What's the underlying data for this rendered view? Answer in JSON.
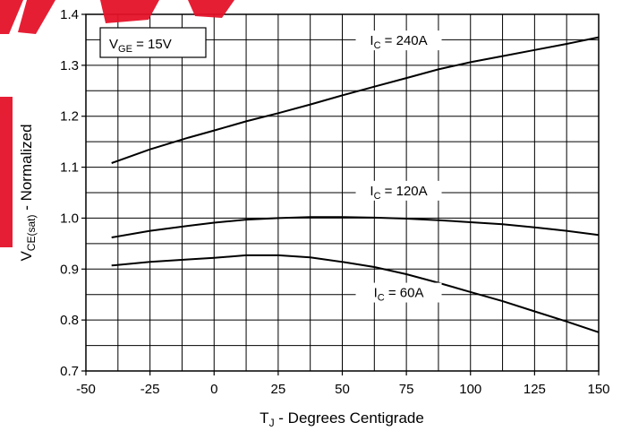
{
  "chart_data": {
    "type": "line",
    "title": "",
    "xlabel_main": "T",
    "xlabel_sub": "J",
    "xlabel_rest": " - Degrees Centigrade",
    "ylabel_main": "V",
    "ylabel_sub": "CE(sat)",
    "ylabel_rest": " - Normalized",
    "xlim": [
      -50,
      150
    ],
    "ylim": [
      0.7,
      1.4
    ],
    "x_ticks": [
      -50,
      -25,
      0,
      25,
      50,
      75,
      100,
      125,
      150
    ],
    "x_tick_labels": [
      "-50",
      "-25",
      "0",
      "25",
      "50",
      "75",
      "100",
      "125",
      "150"
    ],
    "y_ticks": [
      0.7,
      0.8,
      0.9,
      1.0,
      1.1,
      1.2,
      1.3,
      1.4
    ],
    "y_tick_labels": [
      "0.7",
      "0.8",
      "0.9",
      "1.0",
      "1.1",
      "1.2",
      "1.3",
      "1.4"
    ],
    "grid": true,
    "condition_box": {
      "main": "V",
      "sub": "GE",
      "rest": " = 15V"
    },
    "series": [
      {
        "name": "I_C = 240A",
        "label_main": "I",
        "label_sub": "C",
        "label_rest": " = 240A",
        "x": [
          -40,
          -25,
          -10,
          0,
          12.5,
          25,
          37.5,
          50,
          62.5,
          75,
          87.5,
          100,
          112.5,
          125,
          137.5,
          150
        ],
        "y": [
          1.108,
          1.135,
          1.158,
          1.172,
          1.19,
          1.206,
          1.223,
          1.241,
          1.258,
          1.275,
          1.292,
          1.306,
          1.318,
          1.33,
          1.342,
          1.355
        ]
      },
      {
        "name": "I_C = 120A",
        "label_main": "I",
        "label_sub": "C",
        "label_rest": " = 120A",
        "x": [
          -40,
          -25,
          -10,
          0,
          12.5,
          25,
          37.5,
          50,
          62.5,
          75,
          87.5,
          100,
          112.5,
          125,
          137.5,
          150
        ],
        "y": [
          0.962,
          0.975,
          0.985,
          0.991,
          0.997,
          1.0,
          1.002,
          1.002,
          1.001,
          0.999,
          0.996,
          0.992,
          0.988,
          0.982,
          0.975,
          0.967
        ]
      },
      {
        "name": "I_C = 60A",
        "label_main": "I",
        "label_sub": "C",
        "label_rest": " = 60A",
        "x": [
          -40,
          -25,
          -10,
          0,
          12.5,
          25,
          37.5,
          50,
          62.5,
          75,
          87.5,
          100,
          112.5,
          125,
          137.5,
          150
        ],
        "y": [
          0.907,
          0.914,
          0.919,
          0.922,
          0.927,
          0.927,
          0.923,
          0.914,
          0.904,
          0.89,
          0.873,
          0.855,
          0.837,
          0.817,
          0.797,
          0.776
        ]
      }
    ]
  }
}
